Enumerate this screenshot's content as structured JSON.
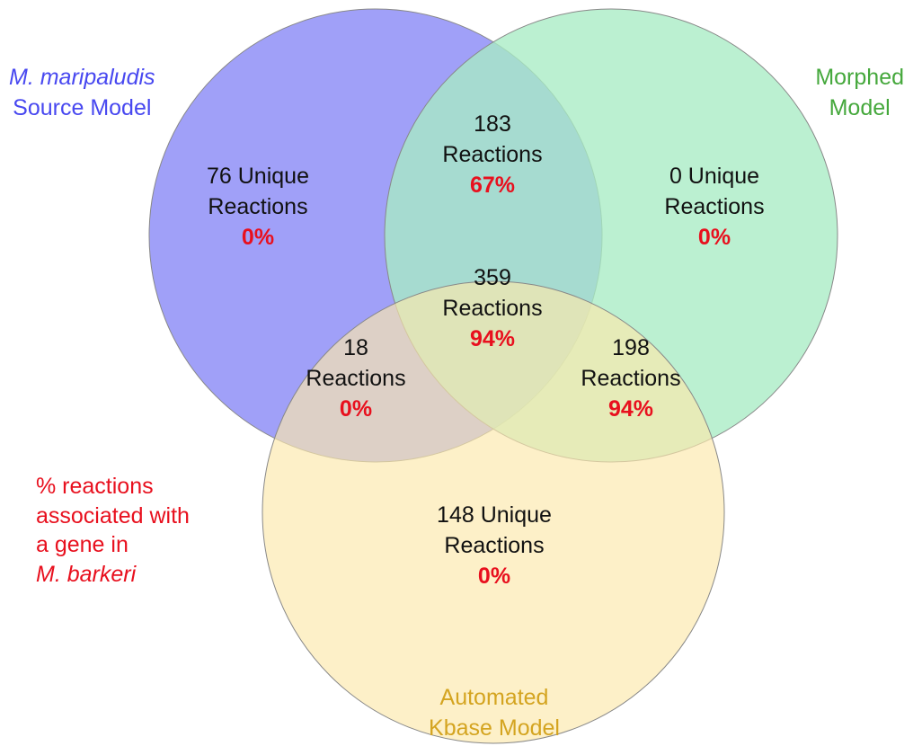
{
  "sets": {
    "source": {
      "title_italic": "M. maripaludis",
      "title_rest": "Source Model",
      "color": "#4848f0",
      "fill": "#a0a0f8"
    },
    "morphed": {
      "title_line1": "Morphed",
      "title_line2": "Model",
      "color": "#45a83c",
      "fill": "#a8ecc4"
    },
    "automated": {
      "title_line1": "Automated",
      "title_line2": "Kbase Model",
      "color": "#d4a420",
      "fill": "#fce8ac"
    }
  },
  "regions": {
    "source_only": {
      "line1": "76 Unique",
      "line2": "Reactions",
      "pct": "0%"
    },
    "morphed_only": {
      "line1": "0 Unique",
      "line2": "Reactions",
      "pct": "0%"
    },
    "automated_only": {
      "line1": "148 Unique",
      "line2": "Reactions",
      "pct": "0%"
    },
    "source_morphed": {
      "line1": "183",
      "line2": "Reactions",
      "pct": "67%"
    },
    "source_automated": {
      "line1": "18",
      "line2": "Reactions",
      "pct": "0%"
    },
    "morphed_automated": {
      "line1": "198",
      "line2": "Reactions",
      "pct": "94%"
    },
    "all_three": {
      "line1": "359",
      "line2": "Reactions",
      "pct": "94%"
    }
  },
  "note": {
    "line1": "% reactions",
    "line2": "associated with",
    "line3": "a gene in",
    "line4_italic": "M. barkeri",
    "color": "#e8101e"
  }
}
